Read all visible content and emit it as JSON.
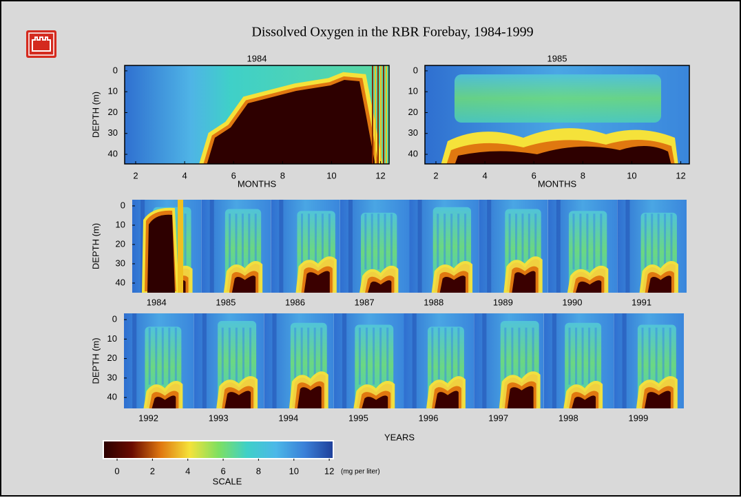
{
  "title": "Dissolved Oxygen in the RBR Forebay, 1984-1999",
  "top_panels": [
    {
      "title": "1984",
      "x_label": "MONTHS",
      "y_label": "DEPTH (m)",
      "xticks": [
        2,
        4,
        6,
        8,
        10,
        12
      ],
      "xlim": [
        1.55,
        12.35
      ],
      "yticks": [
        0,
        10,
        20,
        30,
        40
      ],
      "ylim": [
        -2.6,
        44.6
      ]
    },
    {
      "title": "1985",
      "x_label": "MONTHS",
      "xticks": [
        2,
        4,
        6,
        8,
        10,
        12
      ],
      "xlim": [
        1.55,
        12.35
      ],
      "yticks": [
        0,
        10,
        20,
        30,
        40
      ],
      "ylim": [
        -2.6,
        44.6
      ]
    }
  ],
  "rows": [
    {
      "y_label": "DEPTH (m)",
      "yticks": [
        0,
        10,
        20,
        30,
        40
      ],
      "ylim": [
        -3.2,
        45
      ],
      "years": [
        "1984",
        "1985",
        "1986",
        "1987",
        "1988",
        "1989",
        "1990",
        "1991"
      ]
    },
    {
      "y_label": "DEPTH (m)",
      "yticks": [
        0,
        10,
        20,
        30,
        40
      ],
      "ylim": [
        -3.2,
        45.6
      ],
      "years": [
        "1992",
        "1993",
        "1994",
        "1995",
        "1996",
        "1997",
        "1998",
        "1999"
      ]
    }
  ],
  "x_label": "YEARS",
  "scale": {
    "label": "SCALE",
    "unit": "(mg per liter)",
    "ticks": [
      0,
      2,
      4,
      6,
      8,
      10,
      12
    ],
    "lim": [
      -0.78,
      12.23
    ],
    "colors": [
      "#2a0000",
      "#6a0a00",
      "#e07810",
      "#f5e23a",
      "#7fe060",
      "#3fd0c8",
      "#4cb8e8",
      "#3a80d8",
      "#1f3f9a"
    ]
  }
}
